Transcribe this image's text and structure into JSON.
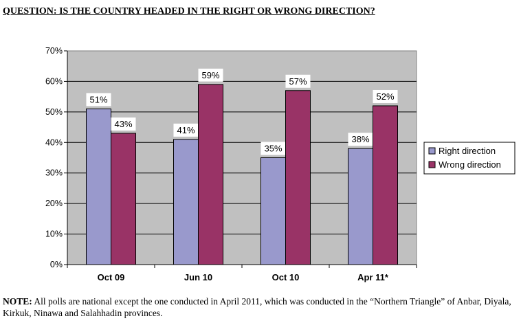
{
  "heading": "QUESTION: IS THE COUNTRY HEADED IN THE RIGHT OR WRONG DIRECTION?",
  "note": {
    "label": "NOTE:",
    "text": " All polls are national except the one conducted in April 2011, which was conducted in the “Northern Triangle” of Anbar, Diyala, Kirkuk, Ninawa and Salahhadin provinces."
  },
  "colors": {
    "plot_bg": "#c0c0c0",
    "right": "#9999cc",
    "wrong": "#993366"
  },
  "chart_data": {
    "type": "bar",
    "categories": [
      "Oct 09",
      "Jun 10",
      "Oct 10",
      "Apr 11*"
    ],
    "series": [
      {
        "name": "Right direction",
        "values": [
          51,
          41,
          35,
          38
        ],
        "labels": [
          "51%",
          "41%",
          "35%",
          "38%"
        ]
      },
      {
        "name": "Wrong direction",
        "values": [
          43,
          59,
          57,
          52
        ],
        "labels": [
          "43%",
          "59%",
          "57%",
          "52%"
        ]
      }
    ],
    "yticks": [
      "0%",
      "10%",
      "20%",
      "30%",
      "40%",
      "50%",
      "60%",
      "70%"
    ],
    "ylim": [
      0,
      70
    ],
    "grid": true,
    "legend": "right"
  }
}
